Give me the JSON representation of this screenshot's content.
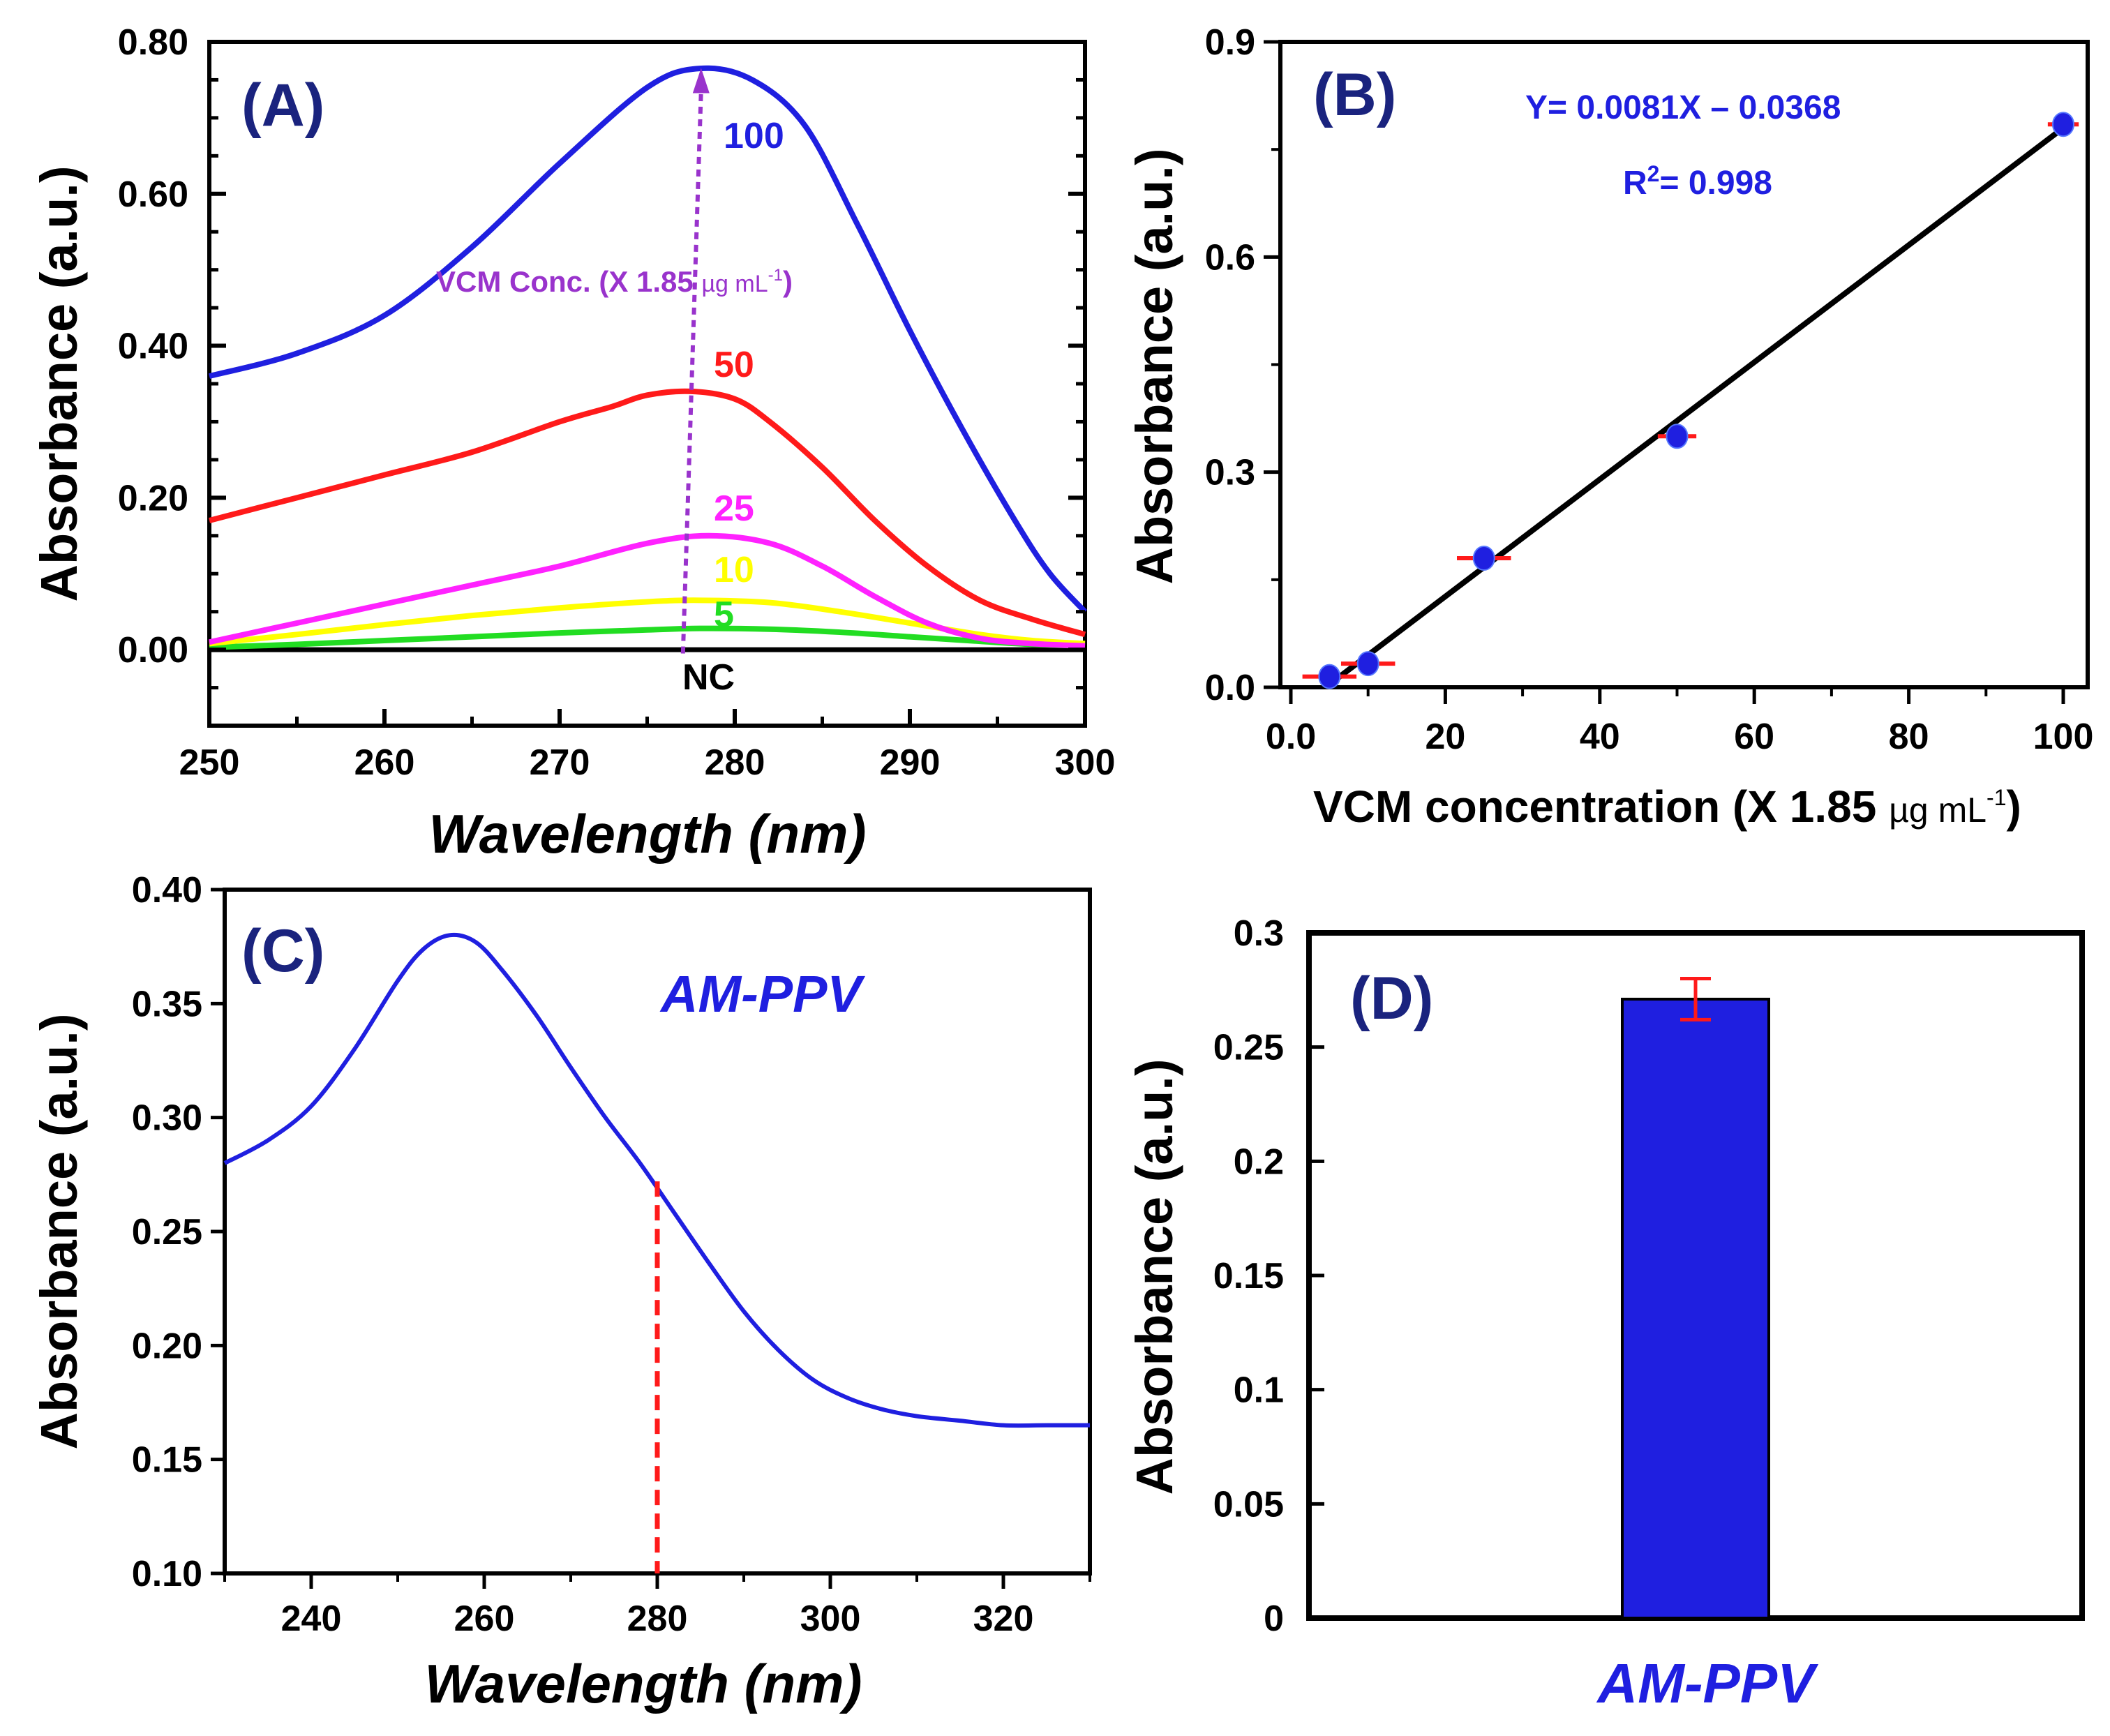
{
  "figure_title": "",
  "chart_data": [
    {
      "panel": "(A)",
      "type": "line",
      "xlabel": "Wavelength (nm)",
      "ylabel": "Absorbance (a.u.)",
      "xlim": [
        250,
        300
      ],
      "ylim": [
        -0.1,
        0.8
      ],
      "xticks": [
        250,
        260,
        270,
        280,
        290,
        300
      ],
      "yticks": [
        0.0,
        0.2,
        0.4,
        0.6,
        0.8
      ],
      "xtick_labels": [
        "250",
        "260",
        "270",
        "280",
        "290",
        "300"
      ],
      "ytick_labels": [
        "0.00",
        "0.20",
        "0.40",
        "0.60",
        "0.80"
      ],
      "series": [
        {
          "name": "100",
          "color": "#1f1fe0",
          "x": [
            250,
            255,
            260,
            265,
            270,
            275,
            278,
            281,
            284,
            287,
            290,
            293,
            296,
            298,
            300
          ],
          "values": [
            0.36,
            0.39,
            0.44,
            0.53,
            0.64,
            0.74,
            0.765,
            0.75,
            0.69,
            0.56,
            0.42,
            0.29,
            0.17,
            0.1,
            0.05
          ]
        },
        {
          "name": "50",
          "color": "#ff1a1a",
          "x": [
            250,
            255,
            260,
            265,
            270,
            273,
            275,
            277.5,
            280,
            282,
            285,
            288,
            291,
            294,
            297,
            300
          ],
          "values": [
            0.17,
            0.2,
            0.23,
            0.26,
            0.3,
            0.32,
            0.335,
            0.34,
            0.33,
            0.3,
            0.24,
            0.17,
            0.11,
            0.065,
            0.04,
            0.02
          ]
        },
        {
          "name": "25",
          "color": "#ff22ff",
          "x": [
            250,
            255,
            260,
            265,
            270,
            275,
            278.5,
            282,
            285,
            288,
            291,
            294,
            297,
            300
          ],
          "values": [
            0.01,
            0.035,
            0.06,
            0.085,
            0.11,
            0.14,
            0.15,
            0.14,
            0.11,
            0.07,
            0.035,
            0.015,
            0.008,
            0.005
          ]
        },
        {
          "name": "10",
          "color": "#ffff00",
          "x": [
            250,
            255,
            260,
            265,
            270,
            275,
            278,
            282,
            286,
            290,
            294,
            297,
            300
          ],
          "values": [
            0.008,
            0.02,
            0.033,
            0.045,
            0.055,
            0.063,
            0.065,
            0.062,
            0.05,
            0.035,
            0.02,
            0.012,
            0.008
          ]
        },
        {
          "name": "5",
          "color": "#22dd22",
          "x": [
            250,
            255,
            260,
            265,
            270,
            275,
            278,
            282,
            286,
            290,
            294,
            297,
            300
          ],
          "values": [
            0.003,
            0.007,
            0.012,
            0.017,
            0.022,
            0.026,
            0.028,
            0.027,
            0.023,
            0.017,
            0.011,
            0.007,
            0.005
          ]
        },
        {
          "name": "NC",
          "color": "#000000",
          "x": [
            250,
            300
          ],
          "values": [
            0.0,
            0.0
          ]
        }
      ],
      "annotations": {
        "arrow_label": "VCM Conc. (X 1.85",
        "arrow_label_unit": "µg mL",
        "arrow_label_sup": "-1",
        "arrow_label_close": ")",
        "arrow_color": "#9933cc",
        "arrow_x": 278,
        "arrow_y_start": -0.005,
        "arrow_y_end": 0.76,
        "nc_label": "NC"
      }
    },
    {
      "panel": "(B)",
      "type": "scatter",
      "xlabel": "VCM concentration (X 1.85",
      "xlabel_unit": "µg mL",
      "xlabel_sup": "-1",
      "xlabel_close": ")",
      "ylabel": "Absorbance (a.u.)",
      "xlim": [
        0,
        100
      ],
      "ylim": [
        0,
        0.9
      ],
      "xticks": [
        0,
        20,
        40,
        60,
        80,
        100
      ],
      "yticks": [
        0.0,
        0.3,
        0.6,
        0.9
      ],
      "xtick_labels": [
        "0.0",
        "20",
        "40",
        "60",
        "80",
        "100"
      ],
      "ytick_labels": [
        "0.0",
        "0.3",
        "0.6",
        "0.9"
      ],
      "x": [
        5,
        10,
        25,
        50,
        100
      ],
      "values": [
        0.015,
        0.033,
        0.18,
        0.35,
        0.785
      ],
      "xerr": [
        3.5,
        3.5,
        3.5,
        2.5,
        2.0
      ],
      "fit_line": {
        "x": [
          4.5,
          100
        ],
        "y": [
          0.0,
          0.78
        ]
      },
      "equation": "Y= 0.0081X – 0.0368",
      "r2_prefix": "R",
      "r2_sup": "2",
      "r2_value": "= 0.998"
    },
    {
      "panel": "(C)",
      "type": "line",
      "xlabel": "Wavelength (nm)",
      "ylabel": "Absorbance (a.u.)",
      "xlim": [
        230,
        330
      ],
      "ylim": [
        0.1,
        0.4
      ],
      "xticks": [
        240,
        260,
        280,
        300,
        320
      ],
      "yticks": [
        0.1,
        0.15,
        0.2,
        0.25,
        0.3,
        0.35,
        0.4
      ],
      "xtick_labels": [
        "240",
        "260",
        "280",
        "300",
        "320"
      ],
      "ytick_labels": [
        "0.10",
        "0.15",
        "0.20",
        "0.25",
        "0.30",
        "0.35",
        "0.40"
      ],
      "series": [
        {
          "name": "AM-PPV",
          "color": "#1f1fe0",
          "x": [
            230,
            235,
            240,
            245,
            250,
            253,
            256,
            259,
            262,
            266,
            270,
            274,
            278,
            282,
            286,
            290,
            294,
            298,
            302,
            306,
            310,
            315,
            320,
            325,
            330
          ],
          "values": [
            0.28,
            0.29,
            0.305,
            0.33,
            0.36,
            0.374,
            0.38,
            0.377,
            0.365,
            0.345,
            0.322,
            0.3,
            0.28,
            0.258,
            0.236,
            0.215,
            0.198,
            0.185,
            0.177,
            0.172,
            0.169,
            0.167,
            0.165,
            0.165,
            0.165
          ]
        }
      ],
      "series_label": "AM-PPV",
      "marker_line": {
        "x": 280,
        "y_top": 0.272,
        "color": "#ff1a1a"
      }
    },
    {
      "panel": "(D)",
      "type": "bar",
      "xlabel": "AM-PPV",
      "ylabel": "Absorbance (a.u.)",
      "ylim": [
        0,
        0.3
      ],
      "yticks": [
        0,
        0.05,
        0.1,
        0.15,
        0.2,
        0.25,
        0.3
      ],
      "ytick_labels": [
        "0",
        "0.05",
        "0.1",
        "0.15",
        "0.2",
        "0.25",
        "0.3"
      ],
      "categories": [
        "AM-PPV"
      ],
      "values": [
        0.271
      ],
      "yerr": [
        0.009
      ],
      "bar_color": "#1f1fe0",
      "err_color": "#ff1a1a"
    }
  ]
}
